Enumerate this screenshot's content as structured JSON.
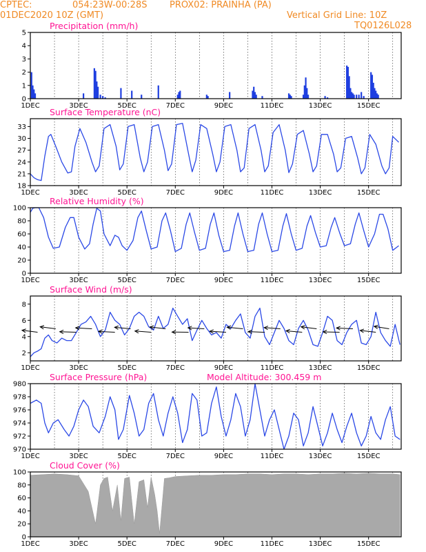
{
  "header": {
    "line1_left": "CPTEC:",
    "coords": "054:23W-00:28S",
    "station": "PROX02: PRAINHA (PA)",
    "date": "01DEC2020 10Z (GMT)",
    "grid_note": "Vertical Grid Line: 10Z",
    "code": "TQ0126L028"
  },
  "colors": {
    "line": "#2a48e6",
    "bar": "#1f3fe0",
    "cloud": "#a9a9a9",
    "title": "#ff1493",
    "header": "#f08a24"
  },
  "chart_data": [
    {
      "type": "bar",
      "title": "Precipitation (mm/h)",
      "ylim": [
        0,
        5
      ],
      "yticks": [
        0,
        1,
        2,
        3,
        4,
        5
      ],
      "xticks": [
        "1DEC",
        "3DEC",
        "5DEC",
        "7DEC",
        "9DEC",
        "11DEC",
        "13DEC",
        "15DEC"
      ],
      "x": [
        0.05,
        0.1,
        0.15,
        0.2,
        2.2,
        2.65,
        2.7,
        2.75,
        2.8,
        2.9,
        3.0,
        3.1,
        3.75,
        4.2,
        4.6,
        5.3,
        6.1,
        6.15,
        6.2,
        7.3,
        7.35,
        8.25,
        9.2,
        9.25,
        9.3,
        9.35,
        9.6,
        10.7,
        10.75,
        10.8,
        11.3,
        11.35,
        11.4,
        11.45,
        11.5,
        12.2,
        12.3,
        13.1,
        13.15,
        13.2,
        13.25,
        13.3,
        13.35,
        13.4,
        13.5,
        13.6,
        13.7,
        13.8,
        14.1,
        14.15,
        14.2,
        14.25,
        14.3,
        14.35,
        14.4
      ],
      "values": [
        2.0,
        1.0,
        0.7,
        0.4,
        0.4,
        2.3,
        2.1,
        1.3,
        0.9,
        0.3,
        0.2,
        0.1,
        0.8,
        0.6,
        0.3,
        1.0,
        0.3,
        0.5,
        0.6,
        0.3,
        0.2,
        0.5,
        0.6,
        0.9,
        0.5,
        0.3,
        0.2,
        0.4,
        0.3,
        0.2,
        0.3,
        1.0,
        1.6,
        0.8,
        0.3,
        0.2,
        0.1,
        2.5,
        2.4,
        1.7,
        0.8,
        0.5,
        0.4,
        0.3,
        0.3,
        0.3,
        0.5,
        0.2,
        2.0,
        1.8,
        1.2,
        0.8,
        0.6,
        0.4,
        0.3
      ]
    },
    {
      "type": "line",
      "title": "Surface Temperature (nC)",
      "ylim": [
        18,
        35
      ],
      "yticks": [
        18,
        21,
        24,
        27,
        30,
        33
      ],
      "xticks": [
        "1DEC",
        "3DEC",
        "5DEC",
        "7DEC",
        "9DEC",
        "11DEC",
        "13DEC",
        "15DEC"
      ],
      "x": [
        0,
        0.15,
        0.3,
        0.45,
        0.6,
        0.75,
        0.85,
        1.05,
        1.3,
        1.55,
        1.7,
        1.85,
        2.05,
        2.3,
        2.55,
        2.7,
        2.85,
        3.05,
        3.3,
        3.55,
        3.7,
        3.85,
        4.05,
        4.3,
        4.55,
        4.7,
        4.85,
        5.05,
        5.3,
        5.55,
        5.7,
        5.85,
        6.05,
        6.3,
        6.55,
        6.7,
        6.85,
        7.05,
        7.3,
        7.55,
        7.7,
        7.85,
        8.05,
        8.3,
        8.55,
        8.7,
        8.85,
        9.05,
        9.3,
        9.55,
        9.7,
        9.85,
        10.05,
        10.3,
        10.55,
        10.7,
        10.85,
        11.05,
        11.3,
        11.55,
        11.7,
        11.85,
        12.05,
        12.3,
        12.55,
        12.7,
        12.85,
        13.05,
        13.3,
        13.55,
        13.7,
        13.85,
        14.05,
        14.3,
        14.55,
        14.7,
        14.85,
        15.0,
        15.25
      ],
      "values": [
        21.0,
        20.0,
        19.5,
        19.3,
        25.5,
        30.5,
        31.0,
        28.0,
        24.0,
        21.2,
        21.5,
        28.0,
        32.5,
        29.0,
        24.0,
        21.5,
        23.0,
        32.5,
        33.5,
        28.0,
        22.0,
        23.5,
        33.0,
        33.5,
        25.0,
        21.5,
        24.0,
        33.0,
        33.5,
        27.0,
        21.8,
        23.5,
        33.5,
        33.8,
        26.0,
        21.5,
        24.5,
        33.5,
        32.5,
        26.0,
        21.5,
        24.0,
        33.0,
        33.5,
        27.0,
        21.5,
        22.5,
        32.5,
        33.5,
        27.0,
        21.5,
        23.0,
        31.5,
        33.5,
        27.0,
        21.3,
        23.5,
        31.0,
        32.0,
        26.0,
        21.5,
        23.0,
        31.0,
        31.0,
        26.0,
        21.5,
        22.5,
        30.0,
        30.5,
        25.0,
        21.0,
        22.5,
        31.0,
        28.5,
        23.0,
        21.0,
        22.5,
        30.5,
        29.0
      ]
    },
    {
      "type": "line",
      "title": "Relative Humidity (%)",
      "ylim": [
        0,
        100
      ],
      "yticks": [
        0,
        20,
        40,
        60,
        80,
        100
      ],
      "xticks": [
        "1DEC",
        "3DEC",
        "5DEC",
        "7DEC",
        "9DEC",
        "11DEC",
        "13DEC",
        "15DEC"
      ],
      "x": [
        0,
        0.1,
        0.2,
        0.35,
        0.55,
        0.75,
        0.95,
        1.2,
        1.45,
        1.65,
        1.8,
        2.0,
        2.25,
        2.45,
        2.6,
        2.75,
        2.9,
        3.05,
        3.3,
        3.5,
        3.65,
        3.8,
        4.0,
        4.25,
        4.45,
        4.6,
        4.8,
        5.0,
        5.25,
        5.45,
        5.6,
        5.8,
        6.0,
        6.25,
        6.45,
        6.6,
        6.8,
        7.0,
        7.25,
        7.45,
        7.6,
        7.8,
        8.0,
        8.25,
        8.45,
        8.6,
        8.8,
        9.0,
        9.25,
        9.45,
        9.6,
        9.8,
        10.0,
        10.25,
        10.45,
        10.6,
        10.8,
        11.0,
        11.25,
        11.45,
        11.6,
        11.8,
        12.0,
        12.25,
        12.45,
        12.6,
        12.8,
        13.0,
        13.25,
        13.45,
        13.6,
        13.8,
        14.0,
        14.25,
        14.45,
        14.6,
        14.8,
        15.0,
        15.25
      ],
      "values": [
        93,
        99,
        100,
        100,
        85,
        55,
        38,
        40,
        70,
        85,
        85,
        55,
        37,
        45,
        75,
        99,
        95,
        60,
        42,
        58,
        55,
        42,
        35,
        50,
        85,
        95,
        65,
        37,
        40,
        80,
        92,
        65,
        33,
        38,
        75,
        92,
        62,
        35,
        38,
        75,
        92,
        58,
        33,
        35,
        72,
        92,
        60,
        33,
        35,
        75,
        92,
        60,
        33,
        35,
        72,
        91,
        60,
        35,
        38,
        72,
        88,
        62,
        40,
        42,
        70,
        85,
        62,
        42,
        45,
        75,
        92,
        65,
        40,
        60,
        90,
        90,
        68,
        35,
        42
      ]
    },
    {
      "type": "line",
      "title": "Surface Wind (m/s)",
      "ylim": [
        1,
        9
      ],
      "yticks": [
        2,
        4,
        6,
        8
      ],
      "xticks": [
        "1DEC",
        "3DEC",
        "5DEC",
        "7DEC",
        "9DEC",
        "11DEC",
        "13DEC",
        "15DEC"
      ],
      "x": [
        0,
        0.15,
        0.3,
        0.45,
        0.6,
        0.75,
        0.9,
        1.1,
        1.3,
        1.5,
        1.7,
        1.9,
        2.1,
        2.3,
        2.5,
        2.7,
        2.9,
        3.1,
        3.3,
        3.5,
        3.7,
        3.9,
        4.1,
        4.3,
        4.5,
        4.7,
        4.9,
        5.1,
        5.3,
        5.5,
        5.7,
        5.9,
        6.1,
        6.3,
        6.5,
        6.7,
        6.9,
        7.1,
        7.3,
        7.5,
        7.7,
        7.9,
        8.1,
        8.3,
        8.5,
        8.7,
        8.9,
        9.1,
        9.3,
        9.5,
        9.7,
        9.9,
        10.1,
        10.3,
        10.5,
        10.7,
        10.9,
        11.1,
        11.3,
        11.5,
        11.7,
        11.9,
        12.1,
        12.3,
        12.5,
        12.7,
        12.9,
        13.1,
        13.3,
        13.5,
        13.7,
        13.9,
        14.1,
        14.3,
        14.5,
        14.7,
        14.9,
        15.1,
        15.3
      ],
      "values": [
        1.5,
        2.0,
        2.2,
        2.5,
        3.8,
        4.2,
        3.5,
        3.2,
        3.8,
        3.5,
        3.5,
        4.5,
        5.5,
        5.8,
        6.5,
        5.5,
        4.0,
        4.8,
        7.0,
        6.0,
        5.5,
        4.2,
        5.0,
        6.5,
        7.0,
        6.5,
        5.2,
        4.8,
        6.5,
        5.0,
        5.5,
        7.5,
        6.5,
        5.5,
        6.2,
        3.5,
        4.8,
        6.0,
        5.0,
        4.2,
        4.5,
        3.8,
        5.5,
        5.0,
        6.0,
        6.8,
        4.5,
        3.8,
        6.5,
        7.5,
        4.0,
        3.0,
        4.5,
        6.0,
        5.0,
        3.5,
        3.0,
        5.0,
        6.0,
        4.8,
        3.0,
        2.8,
        4.5,
        6.5,
        6.0,
        3.5,
        3.0,
        4.5,
        5.5,
        6.0,
        3.2,
        3.0,
        4.0,
        7.0,
        4.5,
        3.5,
        2.8,
        5.5,
        3.0
      ],
      "barbs_x": [
        0.3,
        1.05,
        1.9,
        2.55,
        3.5,
        4.15,
        5.0,
        5.6,
        6.55,
        7.2,
        8.1,
        8.8,
        9.7,
        10.35,
        11.25,
        11.85,
        12.8,
        13.35,
        14.3,
        14.85
      ],
      "barbs_dir": [
        -160,
        200,
        -175,
        190,
        -172,
        195,
        -168,
        198,
        -178,
        190,
        -170,
        196,
        -174,
        192,
        -166,
        200,
        -176,
        188,
        -162,
        205
      ]
    },
    {
      "type": "line",
      "title": "Surface Pressure (hPa)",
      "annotation": "Model Altitude: 300.459 m",
      "ylim": [
        970,
        980
      ],
      "yticks": [
        970,
        972,
        974,
        976,
        978,
        980
      ],
      "xticks": [
        "1DEC",
        "3DEC",
        "5DEC",
        "7DEC",
        "9DEC",
        "11DEC",
        "13DEC",
        "15DEC"
      ],
      "x": [
        0,
        0.25,
        0.45,
        0.6,
        0.75,
        0.95,
        1.15,
        1.4,
        1.6,
        1.8,
        2.0,
        2.2,
        2.4,
        2.6,
        2.85,
        3.1,
        3.3,
        3.5,
        3.65,
        3.85,
        4.1,
        4.3,
        4.5,
        4.7,
        4.9,
        5.1,
        5.3,
        5.5,
        5.7,
        5.9,
        6.1,
        6.3,
        6.5,
        6.7,
        6.9,
        7.1,
        7.3,
        7.5,
        7.7,
        7.9,
        8.1,
        8.3,
        8.5,
        8.7,
        8.9,
        9.1,
        9.3,
        9.5,
        9.7,
        9.9,
        10.1,
        10.3,
        10.5,
        10.7,
        10.9,
        11.1,
        11.3,
        11.5,
        11.7,
        11.9,
        12.1,
        12.3,
        12.5,
        12.7,
        12.9,
        13.1,
        13.3,
        13.5,
        13.7,
        13.9,
        14.1,
        14.3,
        14.5,
        14.7,
        14.9,
        15.1,
        15.3
      ],
      "values": [
        977.0,
        977.5,
        977.0,
        974.0,
        972.5,
        974.0,
        974.5,
        973.0,
        972.0,
        973.5,
        976.0,
        977.5,
        976.5,
        973.5,
        972.5,
        975.0,
        978.0,
        976.0,
        971.5,
        973.0,
        978.2,
        975.5,
        972.0,
        973.0,
        977.0,
        978.5,
        974.5,
        972.0,
        975.5,
        978.0,
        975.5,
        971.0,
        973.0,
        978.5,
        977.5,
        972.0,
        972.5,
        977.0,
        979.5,
        975.0,
        972.0,
        974.5,
        978.5,
        976.5,
        972.0,
        974.5,
        980.0,
        976.0,
        972.0,
        974.5,
        976.0,
        973.0,
        970.0,
        972.0,
        975.5,
        974.5,
        970.5,
        972.5,
        976.5,
        973.5,
        970.5,
        972.5,
        975.5,
        973.0,
        971.0,
        973.5,
        975.5,
        972.5,
        970.5,
        972.0,
        975.0,
        972.5,
        971.5,
        974.5,
        976.5,
        972.0,
        971.5
      ]
    },
    {
      "type": "area",
      "title": "Cloud Cover (%)",
      "ylim": [
        0,
        100
      ],
      "yticks": [
        0,
        20,
        40,
        60,
        80,
        100
      ],
      "xticks": [
        "1DEC",
        "3DEC",
        "5DEC",
        "7DEC",
        "9DEC",
        "11DEC",
        "13DEC",
        "15DEC"
      ],
      "x": [
        0,
        0.5,
        1.0,
        1.5,
        2.0,
        2.4,
        2.7,
        2.9,
        3.05,
        3.2,
        3.4,
        3.6,
        3.75,
        3.9,
        4.1,
        4.3,
        4.5,
        4.7,
        4.85,
        5.0,
        5.15,
        5.25,
        5.35,
        5.55,
        5.75,
        6.0,
        6.5,
        7.0,
        7.5,
        8.0,
        8.5,
        9.0,
        9.5,
        10.0,
        10.5,
        11.0,
        11.5,
        12.0,
        12.5,
        13.0,
        13.5,
        14.0,
        14.5,
        15.0,
        15.3
      ],
      "values": [
        95,
        96,
        97,
        96,
        94,
        70,
        20,
        80,
        90,
        92,
        40,
        80,
        25,
        90,
        92,
        20,
        85,
        88,
        45,
        92,
        65,
        40,
        5,
        90,
        91,
        93,
        94,
        95,
        95,
        96,
        96,
        97,
        97,
        96,
        97,
        97,
        96,
        97,
        97,
        98,
        97,
        98,
        97,
        97,
        96
      ]
    }
  ]
}
